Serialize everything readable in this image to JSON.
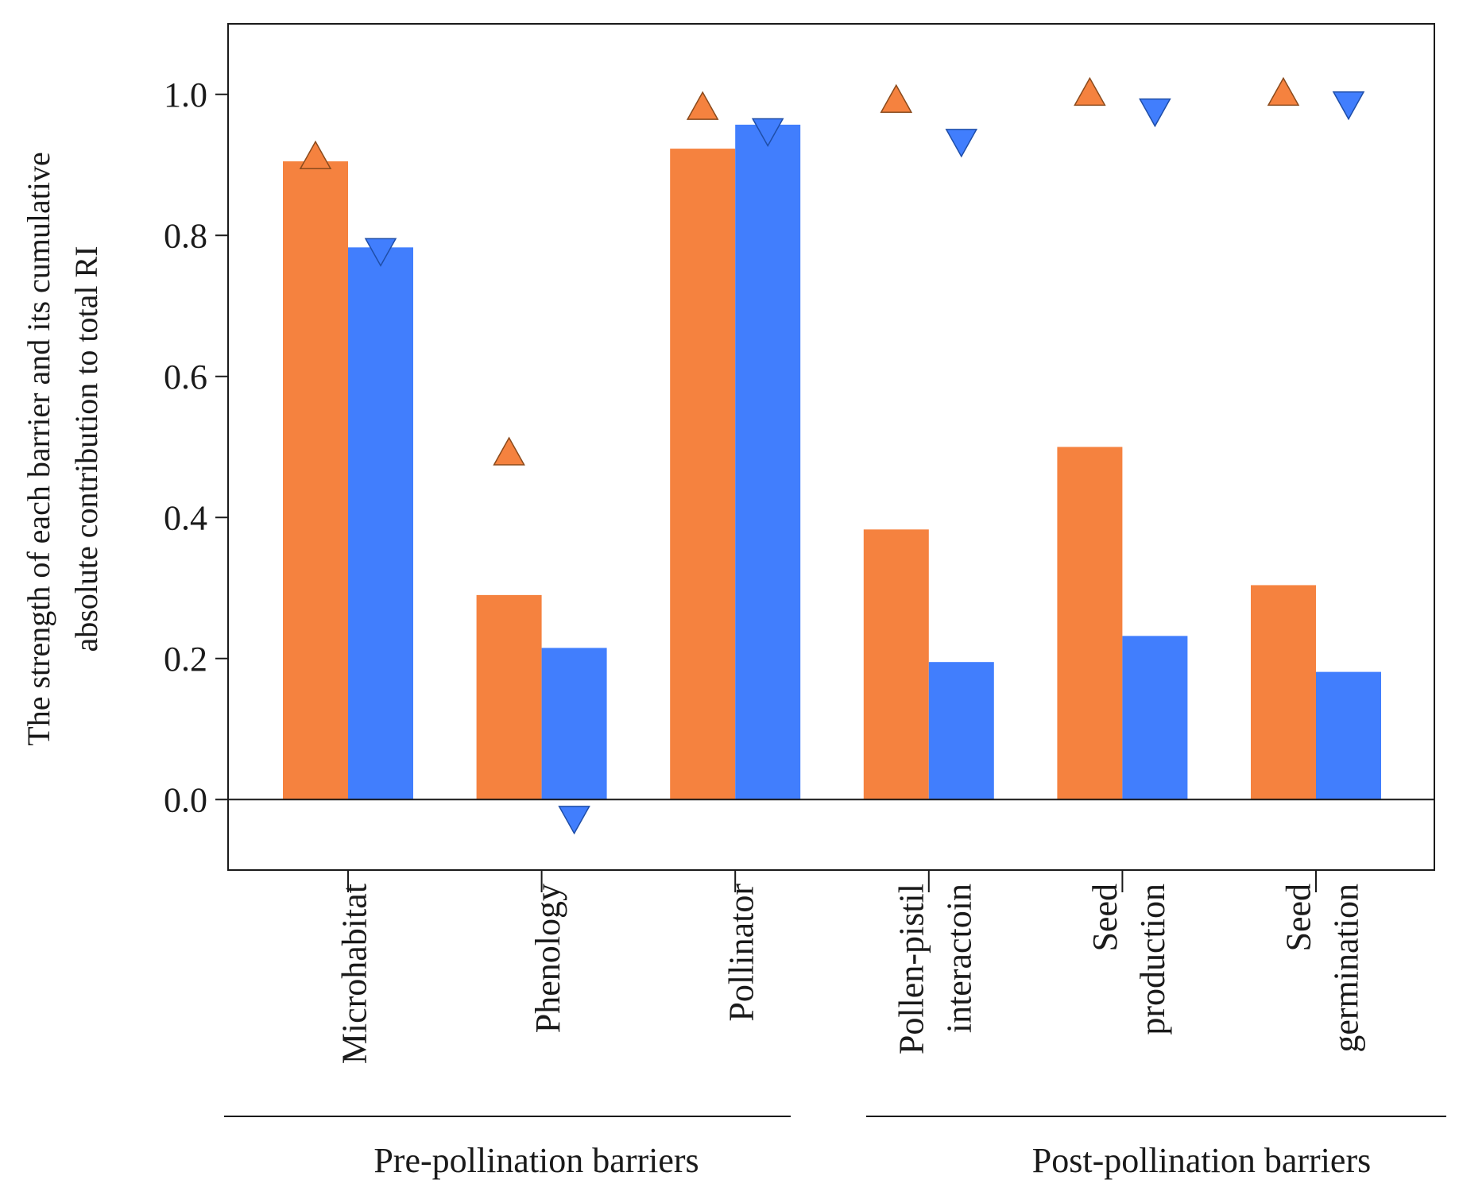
{
  "chart_data": {
    "type": "bar",
    "ylabel_lines": [
      "The strength of each barrier and its cumulative",
      "absolute contribution to total RI"
    ],
    "ylim": [
      -0.1,
      1.1
    ],
    "yticks": [
      {
        "value": 0.0,
        "label": "0.0"
      },
      {
        "value": 0.2,
        "label": "0.2"
      },
      {
        "value": 0.4,
        "label": "0.4"
      },
      {
        "value": 0.6,
        "label": "0.6"
      },
      {
        "value": 0.8,
        "label": "0.8"
      },
      {
        "value": 1.0,
        "label": "1.0"
      }
    ],
    "categories": [
      {
        "lines": [
          "Microhabitat"
        ]
      },
      {
        "lines": [
          "Phenology"
        ]
      },
      {
        "lines": [
          "Pollinator"
        ]
      },
      {
        "lines": [
          "Pollen-pistil",
          "interactoin"
        ]
      },
      {
        "lines": [
          "Seed",
          "production"
        ]
      },
      {
        "lines": [
          "Seed",
          "germination"
        ]
      }
    ],
    "series": [
      {
        "name": "orange",
        "color": "#F5823F",
        "values": [
          0.905,
          0.29,
          0.923,
          0.383,
          0.5,
          0.304
        ]
      },
      {
        "name": "blue",
        "color": "#417EFD",
        "values": [
          0.783,
          0.215,
          0.957,
          0.195,
          0.232,
          0.181
        ]
      }
    ],
    "markers": [
      {
        "series": "orange",
        "shape": "triangle-up",
        "color": "#F5823F",
        "values": [
          0.91,
          0.49,
          0.98,
          0.99,
          1.0,
          1.0
        ]
      },
      {
        "series": "blue",
        "shape": "triangle-down",
        "color": "#417EFD",
        "values": [
          0.78,
          -0.025,
          0.95,
          0.935,
          0.978,
          0.988
        ]
      }
    ],
    "groups": [
      {
        "label": "Pre-pollination barriers",
        "from": 0,
        "to": 2
      },
      {
        "label": "Post-pollination barriers",
        "from": 3,
        "to": 5
      }
    ]
  }
}
